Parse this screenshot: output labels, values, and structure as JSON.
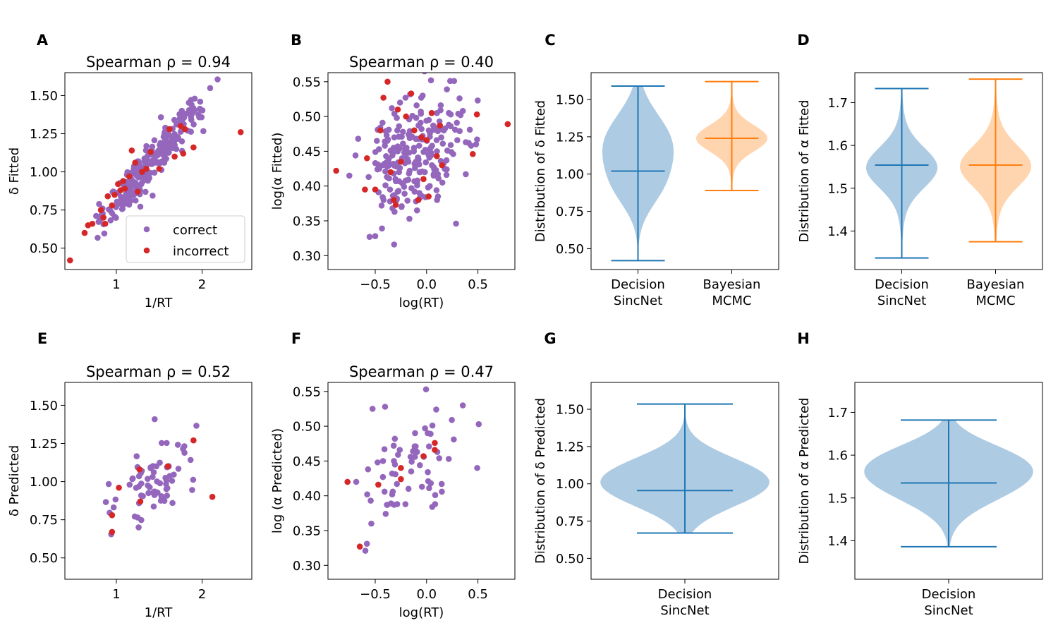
{
  "figure": {
    "panel_letters": [
      "A",
      "B",
      "C",
      "D",
      "E",
      "F",
      "G",
      "H"
    ],
    "colors": {
      "correct": "#9467bd",
      "incorrect": "#d62728",
      "sincnet": "#1f77b4",
      "sincnet_fill": "#aecbe4",
      "mcmc": "#ff7f0e",
      "mcmc_fill": "#ffd5b0"
    }
  },
  "chart_data": [
    {
      "panel": "A",
      "type": "scatter",
      "title": "Spearman ρ = 0.94",
      "xlabel": "1/RT",
      "ylabel": "δ Fitted",
      "xlim": [
        0.4,
        2.58
      ],
      "ylim": [
        0.36,
        1.65
      ],
      "xticks": [
        1,
        2
      ],
      "xticklabels": [
        "1",
        "2"
      ],
      "yticks": [
        0.5,
        0.75,
        1.0,
        1.25,
        1.5
      ],
      "yticklabels": [
        "0.50",
        "0.75",
        "1.00",
        "1.25",
        "1.50"
      ],
      "legend": {
        "position": "lower-right",
        "entries": [
          "correct",
          "incorrect"
        ]
      },
      "series": [
        {
          "name": "correct",
          "generator": {
            "seed": 11,
            "n": 260,
            "x_min": 0.58,
            "x_max": 2.3,
            "slope": 0.66,
            "intercept": 0.13,
            "noise": 0.065
          }
        },
        {
          "name": "incorrect",
          "points": [
            [
              0.46,
              0.42
            ],
            [
              0.63,
              0.6
            ],
            [
              0.67,
              0.65
            ],
            [
              0.72,
              0.66
            ],
            [
              0.82,
              0.75
            ],
            [
              0.85,
              0.7
            ],
            [
              0.87,
              0.66
            ],
            [
              0.9,
              0.84
            ],
            [
              0.95,
              0.78
            ],
            [
              0.98,
              0.85
            ],
            [
              1.02,
              0.92
            ],
            [
              1.05,
              0.88
            ],
            [
              1.08,
              0.94
            ],
            [
              1.1,
              0.89
            ],
            [
              1.15,
              0.97
            ],
            [
              1.18,
              1.14
            ],
            [
              1.22,
              1.06
            ],
            [
              1.25,
              0.87
            ],
            [
              1.3,
              1.0
            ],
            [
              1.35,
              1.02
            ],
            [
              1.4,
              1.13
            ],
            [
              1.5,
              1.02
            ],
            [
              1.62,
              1.28
            ],
            [
              1.68,
              1.1
            ],
            [
              1.75,
              1.3
            ],
            [
              1.78,
              1.12
            ],
            [
              1.8,
              1.28
            ],
            [
              1.9,
              1.16
            ],
            [
              2.45,
              1.26
            ]
          ]
        }
      ]
    },
    {
      "panel": "B",
      "type": "scatter",
      "title": "Spearman ρ = 0.40",
      "xlabel": "log(RT)",
      "ylabel": "log(α Fitted)",
      "xlim": [
        -0.96,
        0.86
      ],
      "ylim": [
        0.28,
        0.563
      ],
      "xticks": [
        -0.5,
        0.0,
        0.5
      ],
      "xticklabels": [
        "−0.5",
        "0.0",
        "0.5"
      ],
      "yticks": [
        0.3,
        0.35,
        0.4,
        0.45,
        0.5,
        0.55
      ],
      "yticklabels": [
        "0.30",
        "0.35",
        "0.40",
        "0.45",
        "0.50",
        "0.55"
      ],
      "series": [
        {
          "name": "correct",
          "generator": {
            "seed": 23,
            "n": 240,
            "x_min": -0.85,
            "x_max": 0.6,
            "slope": 0.06,
            "intercept": 0.448,
            "noise": 0.042
          }
        },
        {
          "name": "incorrect",
          "points": [
            [
              -0.88,
              0.422
            ],
            [
              -0.6,
              0.395
            ],
            [
              -0.58,
              0.44
            ],
            [
              -0.5,
              0.395
            ],
            [
              -0.45,
              0.48
            ],
            [
              -0.42,
              0.527
            ],
            [
              -0.38,
              0.55
            ],
            [
              -0.35,
              0.42
            ],
            [
              -0.32,
              0.38
            ],
            [
              -0.3,
              0.373
            ],
            [
              -0.28,
              0.51
            ],
            [
              -0.25,
              0.435
            ],
            [
              -0.2,
              0.5
            ],
            [
              -0.15,
              0.533
            ],
            [
              -0.12,
              0.48
            ],
            [
              -0.08,
              0.38
            ],
            [
              -0.05,
              0.47
            ],
            [
              -0.03,
              0.41
            ],
            [
              0.0,
              0.466
            ],
            [
              0.02,
              0.385
            ],
            [
              0.05,
              0.505
            ],
            [
              0.1,
              0.443
            ],
            [
              0.13,
              0.487
            ],
            [
              0.15,
              0.43
            ],
            [
              0.45,
              0.446
            ],
            [
              0.49,
              0.503
            ],
            [
              0.79,
              0.489
            ]
          ]
        }
      ]
    },
    {
      "panel": "C",
      "type": "violin",
      "ylabel": "Distribution of δ Fitted",
      "ylim": [
        0.36,
        1.68
      ],
      "yticks": [
        0.5,
        0.75,
        1.0,
        1.25,
        1.5
      ],
      "yticklabels": [
        "0.50",
        "0.75",
        "1.00",
        "1.25",
        "1.50"
      ],
      "categories": [
        "Decision\nSincNet",
        "Bayesian\nMCMC"
      ],
      "violins": [
        {
          "name": "Decision SincNet",
          "min": 0.42,
          "max": 1.59,
          "mean": 1.02,
          "density": {
            "peak": 1.2,
            "sd1": 0.2,
            "w1": 1.0,
            "peak2": 0.9,
            "sd2": 0.15,
            "w2": 0.45
          }
        },
        {
          "name": "Bayesian MCMC",
          "min": 0.89,
          "max": 1.62,
          "mean": 1.24,
          "density": {
            "peak": 1.24,
            "sd1": 0.085,
            "w1": 1.0,
            "peak2": 1.24,
            "sd2": 0.14,
            "w2": 0.2
          }
        }
      ]
    },
    {
      "panel": "D",
      "type": "violin",
      "ylabel": "Distribution of α Fitted",
      "ylim": [
        1.31,
        1.77
      ],
      "yticks": [
        1.4,
        1.5,
        1.6,
        1.7
      ],
      "yticklabels": [
        "1.4",
        "1.5",
        "1.6",
        "1.7"
      ],
      "categories": [
        "Decision\nSincNet",
        "Bayesian\nMCMC"
      ],
      "violins": [
        {
          "name": "Decision SincNet",
          "min": 1.337,
          "max": 1.733,
          "mean": 1.554,
          "density": {
            "peak": 1.548,
            "sd1": 0.045,
            "w1": 1.0,
            "peak2": 1.548,
            "sd2": 0.08,
            "w2": 0.25
          }
        },
        {
          "name": "Bayesian MCMC",
          "min": 1.375,
          "max": 1.755,
          "mean": 1.554,
          "density": {
            "peak": 1.551,
            "sd1": 0.045,
            "w1": 1.0,
            "peak2": 1.551,
            "sd2": 0.08,
            "w2": 0.3
          }
        }
      ]
    },
    {
      "panel": "E",
      "type": "scatter",
      "title": "Spearman ρ = 0.52",
      "xlabel": "1/RT",
      "ylabel": "δ Predicted",
      "xlim": [
        0.4,
        2.58
      ],
      "ylim": [
        0.36,
        1.65
      ],
      "xticks": [
        1,
        2
      ],
      "xticklabels": [
        "1",
        "2"
      ],
      "yticks": [
        0.5,
        0.75,
        1.0,
        1.25,
        1.5
      ],
      "yticklabels": [
        "0.50",
        "0.75",
        "1.00",
        "1.25",
        "1.50"
      ],
      "series": [
        {
          "name": "correct",
          "generator": {
            "seed": 37,
            "n": 72,
            "x_min": 0.55,
            "x_max": 2.25,
            "slope": 0.28,
            "intercept": 0.6,
            "noise": 0.13
          }
        },
        {
          "name": "incorrect",
          "points": [
            [
              0.95,
              0.67
            ],
            [
              0.95,
              0.78
            ],
            [
              1.03,
              0.96
            ],
            [
              1.28,
              0.87
            ],
            [
              1.27,
              1.08
            ],
            [
              1.6,
              1.1
            ],
            [
              1.9,
              1.27
            ],
            [
              2.12,
              0.9
            ]
          ]
        }
      ]
    },
    {
      "panel": "F",
      "type": "scatter",
      "title": "Spearman ρ = 0.47",
      "xlabel": "log(RT)",
      "ylabel": "log (α Predicted)",
      "xlim": [
        -0.96,
        0.86
      ],
      "ylim": [
        0.28,
        0.563
      ],
      "xticks": [
        -0.5,
        0.0,
        0.5
      ],
      "xticklabels": [
        "−0.5",
        "0.0",
        "0.5"
      ],
      "yticks": [
        0.3,
        0.35,
        0.4,
        0.45,
        0.5,
        0.55
      ],
      "yticklabels": [
        "0.30",
        "0.35",
        "0.40",
        "0.45",
        "0.50",
        "0.55"
      ],
      "series": [
        {
          "name": "correct",
          "generator": {
            "seed": 51,
            "n": 70,
            "x_min": -0.85,
            "x_max": 0.6,
            "slope": 0.07,
            "intercept": 0.44,
            "noise": 0.04
          }
        },
        {
          "name": "incorrect",
          "points": [
            [
              -0.77,
              0.42
            ],
            [
              -0.65,
              0.327
            ],
            [
              -0.47,
              0.416
            ],
            [
              -0.25,
              0.44
            ],
            [
              -0.25,
              0.424
            ],
            [
              -0.03,
              0.457
            ],
            [
              0.08,
              0.466
            ],
            [
              0.08,
              0.476
            ]
          ]
        }
      ]
    },
    {
      "panel": "G",
      "type": "violin",
      "ylabel": "Distribution of δ Predicted",
      "ylim": [
        0.36,
        1.68
      ],
      "yticks": [
        0.5,
        0.75,
        1.0,
        1.25,
        1.5
      ],
      "yticklabels": [
        "0.50",
        "0.75",
        "1.00",
        "1.25",
        "1.50"
      ],
      "categories": [
        "Decision\nSincNet"
      ],
      "violins": [
        {
          "name": "Decision SincNet",
          "min": 0.67,
          "max": 1.535,
          "mean": 0.955,
          "density": {
            "peak": 0.97,
            "sd1": 0.14,
            "w1": 1.0,
            "peak2": 1.12,
            "sd2": 0.12,
            "w2": 0.4
          }
        }
      ]
    },
    {
      "panel": "H",
      "type": "violin",
      "ylabel": "Distribution of α Predicted",
      "ylim": [
        1.31,
        1.77
      ],
      "yticks": [
        1.4,
        1.5,
        1.6,
        1.7
      ],
      "yticklabels": [
        "1.4",
        "1.5",
        "1.6",
        "1.7"
      ],
      "categories": [
        "Decision\nSincNet"
      ],
      "violins": [
        {
          "name": "Decision SincNet",
          "min": 1.386,
          "max": 1.682,
          "mean": 1.535,
          "density": {
            "peak": 1.545,
            "sd1": 0.055,
            "w1": 1.0,
            "peak2": 1.6,
            "sd2": 0.04,
            "w2": 0.35
          }
        }
      ]
    }
  ]
}
